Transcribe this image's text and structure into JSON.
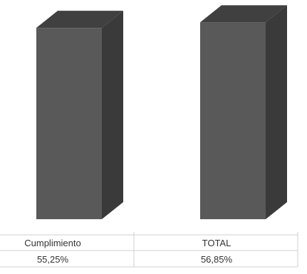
{
  "chart_data": {
    "type": "bar",
    "style": "3d-column",
    "categories": [
      "Cumplimiento",
      "TOTAL"
    ],
    "values": [
      55.25,
      56.85
    ],
    "value_labels": [
      "55,25%",
      "56,85%"
    ],
    "unit": "%",
    "ylim": [
      0,
      60
    ],
    "grid": false,
    "legend": "none",
    "colors": {
      "bar_front": "#595959",
      "bar_top": "#404040",
      "bar_side": "#3a3a3a",
      "table_lines": "#d0d0d0",
      "text": "#333333"
    }
  }
}
